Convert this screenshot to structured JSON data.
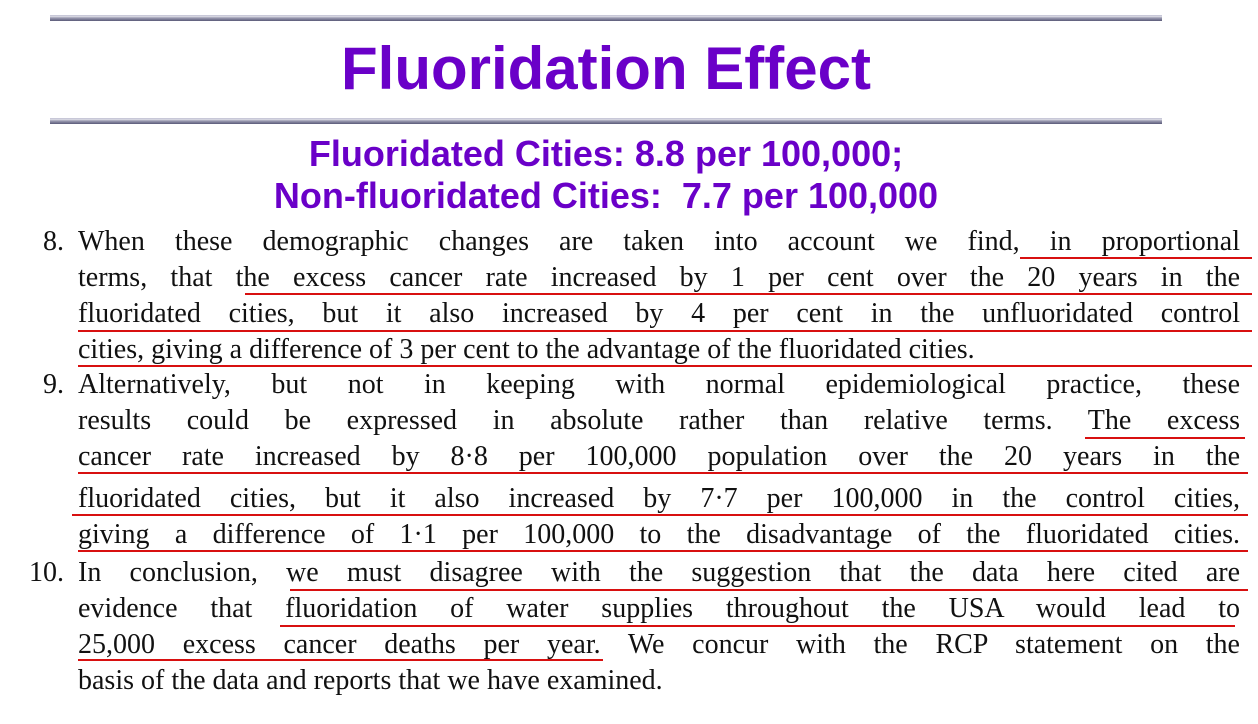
{
  "title": "Fluoridation Effect",
  "subtitle": {
    "line1": "Fluoridated Cities: 8.8 per 100,000;",
    "line2": "Non-fluoridated Cities:  7.7 per 100,000"
  },
  "paragraphs": [
    {
      "number": "8.",
      "lines": [
        "When these demographic changes are taken into account we find, in proportional",
        "terms, that the excess cancer rate increased by 1 per cent over the 20 years in the",
        "fluoridated cities, but it also increased by 4 per cent in the unfluoridated control",
        "cities, giving a difference of 3 per cent to the advantage of the fluoridated cities."
      ]
    },
    {
      "number": "9.",
      "lines": [
        "Alternatively, but not in keeping with normal epidemiological practice, these",
        "results could be expressed in absolute rather than relative terms.  The excess",
        "cancer rate increased by 8·8 per 100,000 population over the 20 years in the",
        "fluoridated cities, but it also increased by 7·7 per 100,000 in the control cities,",
        "giving a difference of 1·1 per 100,000 to the disadvantage of the fluoridated cities."
      ]
    },
    {
      "number": "10.",
      "lines": [
        "In conclusion, we must disagree with the suggestion that the data here cited are",
        "evidence that fluoridation of water supplies throughout the USA would lead to",
        "25,000 excess cancer deaths per year.  We concur with the RCP statement on the",
        "basis of the data and reports that we have examined."
      ]
    }
  ],
  "colors": {
    "title": "#6a00c8",
    "underline": "#d81010",
    "text": "#111111"
  }
}
